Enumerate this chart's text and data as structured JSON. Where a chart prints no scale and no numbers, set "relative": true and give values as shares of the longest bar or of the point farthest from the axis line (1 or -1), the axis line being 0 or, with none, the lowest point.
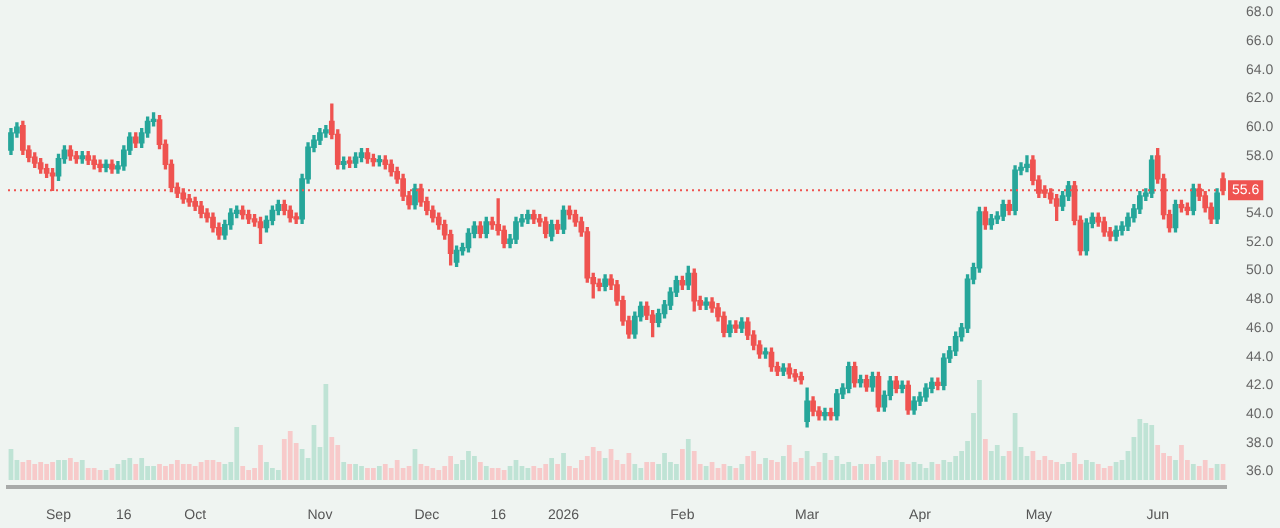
{
  "chart_data": [
    {
      "type": "candlestick",
      "legend": false,
      "categories": [
        null,
        null,
        null,
        null,
        null,
        null,
        null,
        null,
        "Sep",
        null,
        null,
        null,
        null,
        null,
        null,
        null,
        null,
        null,
        null,
        "16",
        null,
        null,
        null,
        null,
        null,
        null,
        null,
        null,
        null,
        null,
        null,
        "Oct",
        null,
        null,
        null,
        null,
        null,
        null,
        null,
        null,
        null,
        null,
        null,
        null,
        null,
        null,
        null,
        null,
        null,
        null,
        null,
        null,
        "Nov",
        null,
        null,
        null,
        null,
        null,
        null,
        null,
        null,
        null,
        null,
        null,
        null,
        null,
        null,
        null,
        null,
        null,
        "Dec",
        null,
        null,
        null,
        null,
        null,
        null,
        null,
        null,
        null,
        null,
        null,
        "16",
        null,
        null,
        null,
        null,
        null,
        null,
        null,
        null,
        null,
        null,
        "2026",
        null,
        null,
        null,
        null,
        null,
        null,
        null,
        null,
        null,
        null,
        null,
        null,
        null,
        null,
        null,
        null,
        null,
        null,
        null,
        "Feb",
        null,
        null,
        null,
        null,
        null,
        null,
        null,
        null,
        null,
        null,
        null,
        null,
        null,
        null,
        null,
        null,
        null,
        null,
        null,
        null,
        "Mar",
        null,
        null,
        null,
        null,
        null,
        null,
        null,
        null,
        null,
        null,
        null,
        null,
        null,
        null,
        null,
        null,
        null,
        null,
        "Apr",
        null,
        null,
        null,
        null,
        null,
        null,
        null,
        null,
        null,
        null,
        null,
        null,
        null,
        null,
        null,
        null,
        null,
        null,
        null,
        "May",
        null,
        null,
        null,
        null,
        null,
        null,
        null,
        null,
        null,
        null,
        null,
        null,
        null,
        null,
        null,
        null,
        null,
        null,
        null,
        "Jun",
        null,
        null,
        null,
        null,
        null,
        null,
        null,
        null,
        null,
        null,
        null
      ],
      "ylim": [
        34.9,
        68
      ],
      "yticks": [
        {
          "value": 36,
          "label": "36.0"
        },
        {
          "value": 38,
          "label": "38.0"
        },
        {
          "value": 40,
          "label": "40.0"
        },
        {
          "value": 42,
          "label": "42.0"
        },
        {
          "value": 44,
          "label": "44.0"
        },
        {
          "value": 46,
          "label": "46.0"
        },
        {
          "value": 48,
          "label": "48.0"
        },
        {
          "value": 50,
          "label": "50.0"
        },
        {
          "value": 52,
          "label": "52.0"
        },
        {
          "value": 54,
          "label": "54.0"
        },
        {
          "value": 58,
          "label": "58.0"
        },
        {
          "value": 60,
          "label": "60.0"
        },
        {
          "value": 62,
          "label": "62.0"
        },
        {
          "value": 64,
          "label": "64.0"
        },
        {
          "value": 66,
          "label": "66.0"
        },
        {
          "value": 68,
          "label": "68.0"
        }
      ],
      "ref_lines": [
        {
          "axis": "y",
          "value": 55.6,
          "label": "55.6",
          "color": "#ef5350",
          "line_style": "dotted"
        }
      ],
      "ohlc": [
        [
          58.4,
          59.9,
          58.1,
          59.6
        ],
        [
          59.6,
          60.3,
          59.3,
          60.0
        ],
        [
          60.1,
          60.4,
          58.1,
          58.4
        ],
        [
          58.4,
          58.7,
          57.6,
          57.9
        ],
        [
          57.9,
          58.2,
          57.2,
          57.5
        ],
        [
          57.5,
          57.8,
          56.8,
          57.1
        ],
        [
          57.1,
          57.4,
          56.5,
          56.8
        ],
        [
          56.8,
          57.1,
          55.6,
          56.6
        ],
        [
          56.6,
          58.1,
          56.3,
          57.8
        ],
        [
          57.8,
          58.7,
          57.5,
          58.4
        ],
        [
          58.4,
          58.7,
          57.7,
          58.0
        ],
        [
          58.0,
          58.3,
          57.5,
          57.8
        ],
        [
          57.8,
          58.3,
          57.5,
          58.0
        ],
        [
          58.0,
          58.3,
          57.4,
          57.7
        ],
        [
          57.7,
          58.0,
          57.1,
          57.4
        ],
        [
          57.4,
          57.7,
          56.9,
          57.2
        ],
        [
          57.2,
          57.7,
          56.9,
          57.4
        ],
        [
          57.4,
          57.7,
          56.8,
          57.1
        ],
        [
          57.1,
          57.6,
          56.8,
          57.3
        ],
        [
          57.3,
          58.7,
          57.0,
          58.4
        ],
        [
          58.4,
          59.6,
          58.1,
          59.3
        ],
        [
          59.3,
          59.6,
          58.6,
          58.9
        ],
        [
          58.9,
          59.9,
          58.6,
          59.6
        ],
        [
          59.6,
          60.7,
          59.3,
          60.4
        ],
        [
          60.4,
          61.0,
          60.1,
          60.5
        ],
        [
          60.5,
          60.8,
          58.5,
          58.8
        ],
        [
          58.8,
          59.1,
          57.1,
          57.4
        ],
        [
          57.4,
          57.7,
          55.5,
          55.8
        ],
        [
          55.8,
          56.1,
          55.1,
          55.4
        ],
        [
          55.4,
          55.7,
          54.7,
          55.0
        ],
        [
          55.0,
          55.3,
          54.5,
          54.8
        ],
        [
          54.8,
          55.1,
          54.2,
          54.5
        ],
        [
          54.5,
          54.8,
          53.7,
          54.0
        ],
        [
          54.0,
          54.3,
          53.4,
          53.7
        ],
        [
          53.7,
          54.0,
          52.7,
          53.0
        ],
        [
          53.0,
          53.3,
          52.2,
          52.5
        ],
        [
          52.5,
          53.5,
          52.2,
          53.2
        ],
        [
          53.2,
          54.3,
          52.9,
          54.0
        ],
        [
          54.0,
          54.5,
          53.7,
          54.2
        ],
        [
          54.2,
          54.5,
          53.6,
          53.9
        ],
        [
          53.9,
          54.2,
          53.3,
          53.6
        ],
        [
          53.6,
          53.9,
          53.1,
          53.4
        ],
        [
          53.4,
          53.7,
          51.9,
          53.0
        ],
        [
          53.0,
          53.8,
          52.7,
          53.5
        ],
        [
          53.5,
          54.5,
          53.2,
          54.2
        ],
        [
          54.2,
          54.9,
          53.9,
          54.6
        ],
        [
          54.6,
          54.9,
          53.9,
          54.2
        ],
        [
          54.2,
          54.5,
          53.4,
          53.7
        ],
        [
          53.7,
          54.0,
          53.3,
          53.6
        ],
        [
          53.6,
          56.7,
          53.3,
          56.4
        ],
        [
          56.4,
          58.9,
          56.1,
          58.6
        ],
        [
          58.6,
          59.4,
          58.3,
          59.1
        ],
        [
          59.1,
          59.9,
          58.8,
          59.6
        ],
        [
          59.6,
          60.1,
          59.3,
          59.8
        ],
        [
          60.4,
          61.6,
          59.2,
          59.5
        ],
        [
          59.5,
          59.8,
          57.1,
          57.4
        ],
        [
          57.4,
          57.9,
          57.1,
          57.6
        ],
        [
          57.6,
          57.9,
          57.2,
          57.5
        ],
        [
          57.5,
          58.2,
          57.2,
          57.9
        ],
        [
          57.9,
          58.5,
          57.6,
          58.2
        ],
        [
          58.2,
          58.5,
          57.5,
          57.8
        ],
        [
          57.8,
          58.1,
          57.3,
          57.6
        ],
        [
          57.6,
          58.0,
          57.3,
          57.7
        ],
        [
          57.7,
          58.0,
          57.1,
          57.4
        ],
        [
          57.4,
          57.7,
          56.6,
          56.9
        ],
        [
          56.9,
          57.2,
          56.1,
          56.4
        ],
        [
          56.4,
          56.7,
          54.9,
          55.2
        ],
        [
          55.2,
          55.5,
          54.3,
          54.6
        ],
        [
          54.6,
          56.0,
          54.3,
          55.7
        ],
        [
          55.7,
          56.0,
          54.5,
          54.8
        ],
        [
          54.8,
          55.1,
          53.9,
          54.2
        ],
        [
          54.2,
          54.5,
          53.4,
          53.7
        ],
        [
          53.7,
          54.0,
          52.9,
          53.2
        ],
        [
          53.2,
          53.5,
          52.2,
          52.5
        ],
        [
          52.5,
          52.8,
          50.4,
          51.2
        ],
        [
          50.6,
          51.7,
          50.3,
          51.4
        ],
        [
          51.4,
          51.9,
          51.1,
          51.6
        ],
        [
          51.6,
          52.9,
          51.3,
          52.6
        ],
        [
          52.6,
          53.4,
          52.3,
          53.1
        ],
        [
          53.1,
          53.4,
          52.3,
          52.6
        ],
        [
          52.6,
          53.7,
          52.3,
          53.4
        ],
        [
          53.4,
          53.7,
          52.9,
          53.2
        ],
        [
          53.2,
          55.0,
          52.5,
          52.8
        ],
        [
          52.8,
          53.1,
          51.6,
          51.9
        ],
        [
          51.9,
          52.5,
          51.6,
          52.2
        ],
        [
          52.2,
          53.7,
          51.9,
          53.4
        ],
        [
          53.4,
          53.9,
          53.1,
          53.6
        ],
        [
          53.6,
          54.2,
          53.3,
          53.9
        ],
        [
          53.9,
          54.2,
          53.3,
          53.6
        ],
        [
          53.6,
          53.9,
          53.1,
          53.4
        ],
        [
          53.4,
          53.7,
          52.3,
          52.6
        ],
        [
          52.4,
          53.5,
          52.1,
          53.2
        ],
        [
          53.2,
          53.5,
          52.6,
          52.9
        ],
        [
          52.9,
          54.5,
          52.6,
          54.2
        ],
        [
          54.2,
          54.5,
          53.6,
          53.9
        ],
        [
          53.9,
          54.2,
          53.1,
          53.4
        ],
        [
          53.4,
          53.7,
          52.4,
          52.7
        ],
        [
          52.7,
          53.0,
          49.2,
          49.5
        ],
        [
          49.5,
          49.8,
          48.1,
          49.1
        ],
        [
          49.1,
          49.4,
          48.6,
          48.9
        ],
        [
          48.9,
          49.7,
          48.6,
          49.4
        ],
        [
          49.4,
          49.7,
          48.7,
          49.0
        ],
        [
          49.0,
          49.3,
          47.6,
          47.9
        ],
        [
          47.9,
          48.2,
          46.2,
          46.5
        ],
        [
          46.5,
          46.8,
          45.3,
          45.6
        ],
        [
          45.6,
          47.1,
          45.3,
          46.8
        ],
        [
          46.8,
          47.8,
          46.5,
          47.5
        ],
        [
          47.5,
          47.8,
          46.6,
          46.9
        ],
        [
          46.9,
          47.2,
          45.4,
          46.4
        ],
        [
          46.4,
          47.3,
          46.1,
          47.0
        ],
        [
          47.0,
          47.9,
          46.7,
          47.6
        ],
        [
          47.6,
          48.8,
          47.3,
          48.5
        ],
        [
          48.5,
          49.6,
          48.2,
          49.3
        ],
        [
          49.3,
          49.6,
          48.7,
          49.0
        ],
        [
          49.0,
          50.3,
          48.7,
          49.8
        ],
        [
          49.8,
          50.1,
          47.2,
          47.9
        ],
        [
          47.9,
          48.2,
          47.3,
          47.6
        ],
        [
          47.6,
          48.1,
          47.3,
          47.8
        ],
        [
          47.8,
          48.1,
          47.1,
          47.4
        ],
        [
          47.4,
          47.7,
          46.5,
          46.8
        ],
        [
          46.8,
          47.1,
          45.4,
          45.7
        ],
        [
          45.7,
          46.5,
          45.4,
          46.2
        ],
        [
          46.2,
          46.5,
          45.7,
          46.0
        ],
        [
          46.0,
          46.7,
          45.7,
          46.4
        ],
        [
          46.4,
          46.7,
          45.2,
          45.5
        ],
        [
          45.5,
          45.8,
          44.5,
          44.8
        ],
        [
          44.8,
          45.1,
          43.9,
          44.2
        ],
        [
          44.2,
          44.6,
          43.9,
          44.3
        ],
        [
          44.3,
          44.6,
          43.0,
          43.3
        ],
        [
          43.3,
          43.6,
          42.7,
          43.0
        ],
        [
          43.0,
          43.5,
          42.7,
          43.2
        ],
        [
          43.2,
          43.5,
          42.5,
          42.8
        ],
        [
          42.8,
          43.1,
          42.3,
          42.6
        ],
        [
          42.6,
          42.9,
          42.1,
          42.4
        ],
        [
          39.5,
          41.8,
          39.1,
          40.9
        ],
        [
          40.9,
          41.2,
          39.9,
          40.2
        ],
        [
          40.2,
          40.5,
          39.6,
          39.9
        ],
        [
          39.9,
          40.4,
          39.6,
          40.1
        ],
        [
          40.1,
          40.4,
          39.6,
          39.9
        ],
        [
          39.9,
          41.7,
          39.6,
          41.4
        ],
        [
          41.4,
          42.1,
          41.1,
          41.8
        ],
        [
          41.8,
          43.6,
          41.5,
          43.3
        ],
        [
          43.3,
          43.6,
          41.9,
          42.2
        ],
        [
          42.2,
          42.7,
          41.9,
          42.4
        ],
        [
          42.4,
          42.7,
          41.6,
          41.9
        ],
        [
          41.9,
          42.9,
          41.6,
          42.6
        ],
        [
          42.6,
          42.9,
          40.2,
          40.5
        ],
        [
          40.5,
          41.6,
          40.2,
          41.3
        ],
        [
          41.3,
          42.6,
          41.0,
          42.3
        ],
        [
          42.3,
          42.6,
          41.5,
          41.8
        ],
        [
          41.8,
          42.3,
          41.5,
          42.0
        ],
        [
          42.0,
          42.3,
          40.0,
          40.3
        ],
        [
          40.3,
          41.2,
          40.0,
          40.9
        ],
        [
          40.9,
          41.5,
          40.6,
          41.2
        ],
        [
          41.2,
          42.1,
          40.9,
          41.8
        ],
        [
          41.8,
          42.5,
          41.5,
          42.2
        ],
        [
          42.2,
          42.5,
          41.7,
          42.0
        ],
        [
          42.0,
          44.2,
          41.7,
          43.9
        ],
        [
          43.9,
          44.7,
          43.6,
          44.4
        ],
        [
          44.4,
          45.7,
          44.1,
          45.4
        ],
        [
          45.4,
          46.3,
          45.1,
          46.0
        ],
        [
          46.0,
          49.7,
          45.7,
          49.4
        ],
        [
          49.4,
          50.5,
          49.1,
          50.2
        ],
        [
          50.2,
          54.4,
          49.9,
          54.1
        ],
        [
          54.1,
          54.4,
          52.9,
          53.2
        ],
        [
          53.2,
          53.9,
          52.9,
          53.6
        ],
        [
          53.6,
          54.1,
          53.3,
          53.8
        ],
        [
          53.8,
          54.9,
          53.5,
          54.6
        ],
        [
          54.6,
          54.9,
          53.9,
          54.2
        ],
        [
          54.2,
          57.3,
          53.9,
          57.0
        ],
        [
          57.0,
          57.5,
          56.7,
          57.2
        ],
        [
          57.2,
          58.0,
          56.9,
          57.4
        ],
        [
          57.7,
          58.0,
          56.0,
          56.3
        ],
        [
          56.3,
          56.6,
          55.1,
          55.4
        ],
        [
          55.6,
          55.9,
          55.1,
          55.4
        ],
        [
          55.4,
          55.7,
          54.7,
          55.0
        ],
        [
          55.0,
          55.3,
          53.5,
          54.5
        ],
        [
          54.5,
          55.5,
          54.2,
          55.2
        ],
        [
          55.2,
          56.2,
          54.9,
          55.9
        ],
        [
          55.9,
          56.2,
          53.2,
          53.5
        ],
        [
          53.5,
          53.8,
          51.1,
          51.4
        ],
        [
          51.4,
          53.6,
          51.1,
          53.3
        ],
        [
          53.3,
          54.0,
          53.0,
          53.7
        ],
        [
          53.7,
          54.0,
          53.1,
          53.4
        ],
        [
          53.4,
          53.7,
          52.4,
          52.7
        ],
        [
          52.7,
          53.0,
          52.1,
          52.4
        ],
        [
          52.4,
          53.1,
          52.1,
          52.8
        ],
        [
          52.8,
          53.4,
          52.5,
          53.1
        ],
        [
          53.1,
          54.0,
          52.8,
          53.7
        ],
        [
          53.7,
          54.6,
          53.4,
          54.3
        ],
        [
          54.3,
          55.5,
          54.0,
          55.2
        ],
        [
          55.2,
          55.7,
          54.9,
          55.4
        ],
        [
          55.4,
          58.0,
          55.1,
          57.7
        ],
        [
          58.0,
          58.5,
          56.1,
          56.4
        ],
        [
          56.4,
          56.7,
          53.6,
          53.9
        ],
        [
          53.9,
          54.2,
          52.7,
          53.0
        ],
        [
          53.0,
          54.9,
          52.7,
          54.6
        ],
        [
          54.6,
          54.9,
          54.1,
          54.4
        ],
        [
          54.4,
          54.7,
          53.9,
          54.2
        ],
        [
          54.2,
          56.0,
          53.9,
          55.7
        ],
        [
          55.7,
          56.0,
          54.9,
          55.2
        ],
        [
          55.2,
          55.5,
          54.1,
          54.4
        ],
        [
          54.4,
          54.7,
          53.3,
          53.6
        ],
        [
          53.6,
          55.7,
          53.3,
          55.4
        ],
        [
          56.4,
          56.8,
          55.3,
          55.6
        ]
      ],
      "colors": [
        "#26a69a",
        "#26a69a",
        "#ef5350",
        "#ef5350",
        "#ef5350",
        "#ef5350",
        "#ef5350",
        "#ef5350",
        "#26a69a",
        "#26a69a",
        "#ef5350",
        "#ef5350",
        "#26a69a",
        "#ef5350",
        "#ef5350",
        "#ef5350",
        "#26a69a",
        "#ef5350",
        "#26a69a",
        "#26a69a",
        "#26a69a",
        "#ef5350",
        "#26a69a",
        "#26a69a",
        "#26a69a",
        "#ef5350",
        "#ef5350",
        "#ef5350",
        "#ef5350",
        "#ef5350",
        "#ef5350",
        "#ef5350",
        "#ef5350",
        "#ef5350",
        "#ef5350",
        "#ef5350",
        "#26a69a",
        "#26a69a",
        "#26a69a",
        "#ef5350",
        "#ef5350",
        "#ef5350",
        "#ef5350",
        "#26a69a",
        "#26a69a",
        "#26a69a",
        "#ef5350",
        "#ef5350",
        "#ef5350",
        "#26a69a",
        "#26a69a",
        "#26a69a",
        "#26a69a",
        "#26a69a",
        "#ef5350",
        "#ef5350",
        "#26a69a",
        "#ef5350",
        "#26a69a",
        "#26a69a",
        "#ef5350",
        "#ef5350",
        "#26a69a",
        "#ef5350",
        "#ef5350",
        "#ef5350",
        "#ef5350",
        "#ef5350",
        "#26a69a",
        "#ef5350",
        "#ef5350",
        "#ef5350",
        "#ef5350",
        "#ef5350",
        "#ef5350",
        "#26a69a",
        "#26a69a",
        "#26a69a",
        "#26a69a",
        "#ef5350",
        "#26a69a",
        "#ef5350",
        "#ef5350",
        "#ef5350",
        "#26a69a",
        "#26a69a",
        "#26a69a",
        "#26a69a",
        "#ef5350",
        "#ef5350",
        "#ef5350",
        "#26a69a",
        "#ef5350",
        "#26a69a",
        "#ef5350",
        "#ef5350",
        "#ef5350",
        "#ef5350",
        "#ef5350",
        "#ef5350",
        "#26a69a",
        "#ef5350",
        "#ef5350",
        "#ef5350",
        "#ef5350",
        "#26a69a",
        "#26a69a",
        "#ef5350",
        "#ef5350",
        "#26a69a",
        "#26a69a",
        "#26a69a",
        "#26a69a",
        "#ef5350",
        "#26a69a",
        "#ef5350",
        "#ef5350",
        "#26a69a",
        "#ef5350",
        "#ef5350",
        "#ef5350",
        "#26a69a",
        "#ef5350",
        "#26a69a",
        "#ef5350",
        "#ef5350",
        "#ef5350",
        "#26a69a",
        "#ef5350",
        "#ef5350",
        "#26a69a",
        "#ef5350",
        "#ef5350",
        "#ef5350",
        "#26a69a",
        "#ef5350",
        "#ef5350",
        "#26a69a",
        "#ef5350",
        "#26a69a",
        "#26a69a",
        "#26a69a",
        "#ef5350",
        "#26a69a",
        "#ef5350",
        "#26a69a",
        "#ef5350",
        "#26a69a",
        "#26a69a",
        "#ef5350",
        "#26a69a",
        "#ef5350",
        "#26a69a",
        "#26a69a",
        "#26a69a",
        "#26a69a",
        "#ef5350",
        "#26a69a",
        "#26a69a",
        "#26a69a",
        "#26a69a",
        "#26a69a",
        "#26a69a",
        "#26a69a",
        "#ef5350",
        "#26a69a",
        "#26a69a",
        "#26a69a",
        "#ef5350",
        "#26a69a",
        "#26a69a",
        "#26a69a",
        "#ef5350",
        "#ef5350",
        "#ef5350",
        "#ef5350",
        "#ef5350",
        "#26a69a",
        "#26a69a",
        "#ef5350",
        "#ef5350",
        "#26a69a",
        "#26a69a",
        "#ef5350",
        "#ef5350",
        "#ef5350",
        "#26a69a",
        "#26a69a",
        "#26a69a",
        "#26a69a",
        "#26a69a",
        "#26a69a",
        "#26a69a",
        "#ef5350",
        "#ef5350",
        "#ef5350",
        "#26a69a",
        "#ef5350",
        "#ef5350",
        "#26a69a",
        "#ef5350",
        "#ef5350",
        "#ef5350",
        "#26a69a",
        "#ef5350"
      ]
    },
    {
      "type": "bar",
      "relative": true,
      "categories": [
        null,
        null,
        null,
        null,
        null,
        null,
        null,
        null,
        null,
        null,
        null,
        null,
        null,
        null,
        null,
        null,
        null,
        null,
        null,
        null,
        null,
        null,
        null,
        null,
        null,
        null,
        null,
        null,
        null,
        null,
        null,
        null,
        null,
        null,
        null,
        null,
        null,
        null,
        null,
        null,
        null,
        null,
        null,
        null,
        null,
        null,
        null,
        null,
        null,
        null,
        null,
        null,
        null,
        null,
        null,
        null,
        null,
        null,
        null,
        null,
        null,
        null,
        null,
        null,
        null,
        null,
        null,
        null,
        null,
        null,
        null,
        null,
        null,
        null,
        null,
        null,
        null,
        null,
        null,
        null,
        null,
        null,
        null,
        null,
        null,
        null,
        null,
        null,
        null,
        null,
        null,
        null,
        null,
        null,
        null,
        null,
        null,
        null,
        null,
        null,
        null,
        null,
        null,
        null,
        null,
        null,
        null,
        null,
        null,
        null,
        null,
        null,
        null,
        null,
        null,
        null,
        null,
        null,
        null,
        null,
        null,
        null,
        null,
        null,
        null,
        null,
        null,
        null,
        null,
        null,
        null,
        null,
        null,
        null,
        null,
        null,
        null,
        null,
        null,
        null,
        null,
        null,
        null,
        null,
        null,
        null,
        null,
        null,
        null,
        null,
        null,
        null,
        null,
        null,
        null,
        null,
        null,
        null,
        null,
        null,
        null,
        null,
        null,
        null,
        null,
        null,
        null,
        null,
        null,
        null,
        null,
        null,
        null,
        null,
        null,
        null,
        null,
        null,
        null,
        null,
        null,
        null,
        null,
        null,
        null,
        null,
        null,
        null,
        null,
        null,
        null,
        null,
        null,
        null,
        null,
        null,
        null,
        null,
        null,
        null,
        null,
        null,
        null,
        null,
        null
      ],
      "values": [
        0.31,
        0.2,
        0.18,
        0.2,
        0.16,
        0.18,
        0.16,
        0.18,
        0.2,
        0.2,
        0.22,
        0.18,
        0.2,
        0.12,
        0.12,
        0.1,
        0.1,
        0.12,
        0.16,
        0.2,
        0.22,
        0.16,
        0.22,
        0.14,
        0.14,
        0.16,
        0.14,
        0.16,
        0.2,
        0.16,
        0.16,
        0.14,
        0.18,
        0.2,
        0.2,
        0.18,
        0.16,
        0.18,
        0.53,
        0.14,
        0.1,
        0.12,
        0.35,
        0.18,
        0.12,
        0.1,
        0.41,
        0.49,
        0.37,
        0.31,
        0.22,
        0.55,
        0.33,
        0.96,
        0.43,
        0.35,
        0.18,
        0.16,
        0.16,
        0.14,
        0.12,
        0.12,
        0.14,
        0.16,
        0.12,
        0.2,
        0.12,
        0.14,
        0.31,
        0.16,
        0.14,
        0.12,
        0.1,
        0.14,
        0.24,
        0.16,
        0.2,
        0.29,
        0.24,
        0.18,
        0.14,
        0.12,
        0.12,
        0.1,
        0.14,
        0.2,
        0.14,
        0.12,
        0.14,
        0.12,
        0.16,
        0.22,
        0.16,
        0.27,
        0.14,
        0.12,
        0.2,
        0.24,
        0.33,
        0.29,
        0.22,
        0.31,
        0.2,
        0.16,
        0.27,
        0.16,
        0.12,
        0.18,
        0.18,
        0.16,
        0.27,
        0.18,
        0.16,
        0.31,
        0.41,
        0.29,
        0.16,
        0.14,
        0.18,
        0.12,
        0.16,
        0.14,
        0.12,
        0.16,
        0.24,
        0.29,
        0.16,
        0.22,
        0.2,
        0.18,
        0.24,
        0.35,
        0.18,
        0.22,
        0.29,
        0.14,
        0.18,
        0.27,
        0.2,
        0.24,
        0.16,
        0.18,
        0.14,
        0.16,
        0.16,
        0.16,
        0.24,
        0.18,
        0.2,
        0.2,
        0.18,
        0.16,
        0.18,
        0.16,
        0.12,
        0.18,
        0.16,
        0.2,
        0.18,
        0.24,
        0.29,
        0.39,
        0.67,
        1,
        0.41,
        0.29,
        0.35,
        0.24,
        0.29,
        0.67,
        0.33,
        0.24,
        0.29,
        0.2,
        0.24,
        0.2,
        0.18,
        0.16,
        0.18,
        0.27,
        0.16,
        0.2,
        0.18,
        0.16,
        0.12,
        0.14,
        0.18,
        0.2,
        0.29,
        0.43,
        0.61,
        0.57,
        0.55,
        0.35,
        0.27,
        0.24,
        0.2,
        0.35,
        0.2,
        0.16,
        0.14,
        0.2,
        0.12,
        0.16,
        0.16
      ],
      "colors": [
        "#bfe3d5",
        "#bfe3d5",
        "#f7caca",
        "#f7caca",
        "#f7caca",
        "#f7caca",
        "#f7caca",
        "#f7caca",
        "#bfe3d5",
        "#bfe3d5",
        "#f7caca",
        "#f7caca",
        "#bfe3d5",
        "#f7caca",
        "#f7caca",
        "#f7caca",
        "#bfe3d5",
        "#f7caca",
        "#bfe3d5",
        "#bfe3d5",
        "#bfe3d5",
        "#f7caca",
        "#bfe3d5",
        "#bfe3d5",
        "#bfe3d5",
        "#f7caca",
        "#f7caca",
        "#f7caca",
        "#f7caca",
        "#f7caca",
        "#f7caca",
        "#f7caca",
        "#f7caca",
        "#f7caca",
        "#f7caca",
        "#f7caca",
        "#bfe3d5",
        "#bfe3d5",
        "#bfe3d5",
        "#f7caca",
        "#f7caca",
        "#f7caca",
        "#f7caca",
        "#bfe3d5",
        "#bfe3d5",
        "#bfe3d5",
        "#f7caca",
        "#f7caca",
        "#f7caca",
        "#bfe3d5",
        "#bfe3d5",
        "#bfe3d5",
        "#bfe3d5",
        "#bfe3d5",
        "#f7caca",
        "#f7caca",
        "#bfe3d5",
        "#f7caca",
        "#bfe3d5",
        "#bfe3d5",
        "#f7caca",
        "#f7caca",
        "#bfe3d5",
        "#f7caca",
        "#f7caca",
        "#f7caca",
        "#f7caca",
        "#f7caca",
        "#bfe3d5",
        "#f7caca",
        "#f7caca",
        "#f7caca",
        "#f7caca",
        "#f7caca",
        "#f7caca",
        "#bfe3d5",
        "#bfe3d5",
        "#bfe3d5",
        "#bfe3d5",
        "#f7caca",
        "#bfe3d5",
        "#f7caca",
        "#f7caca",
        "#f7caca",
        "#bfe3d5",
        "#bfe3d5",
        "#bfe3d5",
        "#bfe3d5",
        "#f7caca",
        "#f7caca",
        "#f7caca",
        "#bfe3d5",
        "#f7caca",
        "#bfe3d5",
        "#f7caca",
        "#f7caca",
        "#f7caca",
        "#f7caca",
        "#f7caca",
        "#f7caca",
        "#bfe3d5",
        "#f7caca",
        "#f7caca",
        "#f7caca",
        "#f7caca",
        "#bfe3d5",
        "#bfe3d5",
        "#f7caca",
        "#f7caca",
        "#bfe3d5",
        "#bfe3d5",
        "#bfe3d5",
        "#bfe3d5",
        "#f7caca",
        "#bfe3d5",
        "#f7caca",
        "#f7caca",
        "#bfe3d5",
        "#f7caca",
        "#f7caca",
        "#f7caca",
        "#bfe3d5",
        "#f7caca",
        "#bfe3d5",
        "#f7caca",
        "#f7caca",
        "#f7caca",
        "#bfe3d5",
        "#f7caca",
        "#f7caca",
        "#bfe3d5",
        "#f7caca",
        "#f7caca",
        "#f7caca",
        "#bfe3d5",
        "#f7caca",
        "#f7caca",
        "#bfe3d5",
        "#f7caca",
        "#bfe3d5",
        "#bfe3d5",
        "#bfe3d5",
        "#f7caca",
        "#bfe3d5",
        "#f7caca",
        "#bfe3d5",
        "#f7caca",
        "#bfe3d5",
        "#bfe3d5",
        "#f7caca",
        "#bfe3d5",
        "#f7caca",
        "#bfe3d5",
        "#bfe3d5",
        "#bfe3d5",
        "#bfe3d5",
        "#f7caca",
        "#bfe3d5",
        "#bfe3d5",
        "#bfe3d5",
        "#bfe3d5",
        "#bfe3d5",
        "#bfe3d5",
        "#bfe3d5",
        "#f7caca",
        "#bfe3d5",
        "#bfe3d5",
        "#bfe3d5",
        "#f7caca",
        "#bfe3d5",
        "#bfe3d5",
        "#bfe3d5",
        "#f7caca",
        "#f7caca",
        "#f7caca",
        "#f7caca",
        "#f7caca",
        "#bfe3d5",
        "#bfe3d5",
        "#f7caca",
        "#f7caca",
        "#bfe3d5",
        "#bfe3d5",
        "#f7caca",
        "#f7caca",
        "#f7caca",
        "#bfe3d5",
        "#bfe3d5",
        "#bfe3d5",
        "#bfe3d5",
        "#bfe3d5",
        "#bfe3d5",
        "#bfe3d5",
        "#f7caca",
        "#f7caca",
        "#f7caca",
        "#bfe3d5",
        "#f7caca",
        "#f7caca",
        "#bfe3d5",
        "#f7caca",
        "#f7caca",
        "#f7caca",
        "#bfe3d5",
        "#f7caca"
      ]
    }
  ]
}
